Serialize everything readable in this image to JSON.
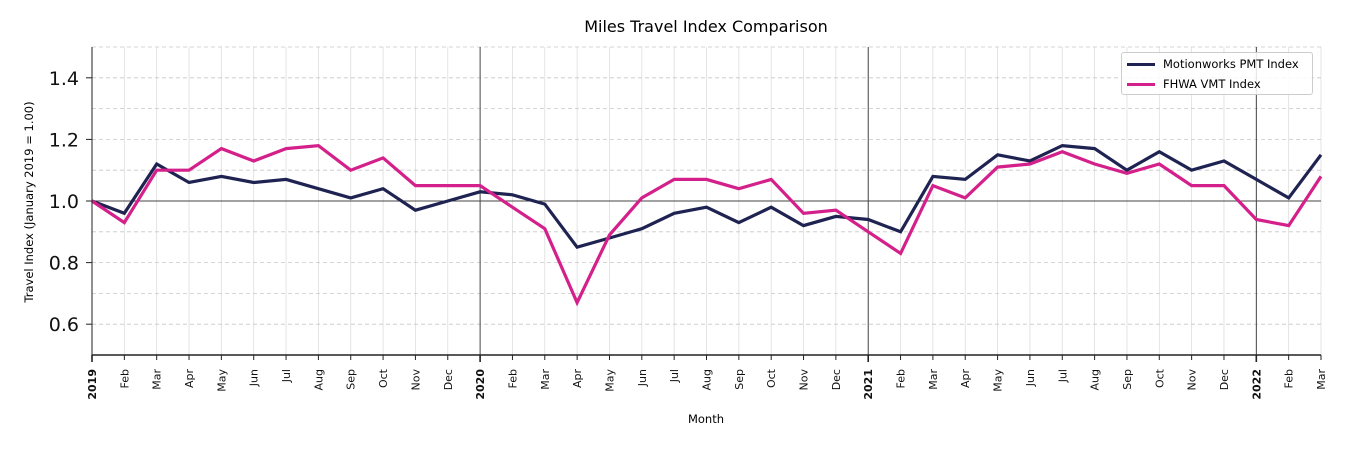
{
  "chart_data": {
    "type": "line",
    "title": "Miles Travel Index Comparison",
    "xlabel": "Month",
    "ylabel": "Travel Index (January 2019 = 1.00)",
    "ylim": [
      0.5,
      1.5
    ],
    "yticks": [
      "0.6",
      "0.8",
      "1.0",
      "1.2",
      "1.4"
    ],
    "grid": true,
    "legend_position": "upper right",
    "reference_line": 1.0,
    "year_markers": [
      "2019",
      "2020",
      "2021",
      "2022"
    ],
    "x": [
      "2019",
      "Feb",
      "Mar",
      "Apr",
      "May",
      "Jun",
      "Jul",
      "Aug",
      "Sep",
      "Oct",
      "Nov",
      "Dec",
      "2020",
      "Feb",
      "Mar",
      "Apr",
      "May",
      "Jun",
      "Jul",
      "Aug",
      "Sep",
      "Oct",
      "Nov",
      "Dec",
      "2021",
      "Feb",
      "Mar",
      "Apr",
      "May",
      "Jun",
      "Jul",
      "Aug",
      "Sep",
      "Oct",
      "Nov",
      "Dec",
      "2022",
      "Feb",
      "Mar"
    ],
    "series": [
      {
        "name": "Motionworks PMT Index",
        "color": "#1f2352",
        "values": [
          1.0,
          0.96,
          1.12,
          1.06,
          1.08,
          1.06,
          1.07,
          1.04,
          1.01,
          1.04,
          0.97,
          1.0,
          1.03,
          1.02,
          0.99,
          0.85,
          0.88,
          0.91,
          0.96,
          0.98,
          0.93,
          0.98,
          0.92,
          0.95,
          0.94,
          0.9,
          1.08,
          1.07,
          1.15,
          1.13,
          1.18,
          1.17,
          1.1,
          1.16,
          1.1,
          1.13,
          1.07,
          1.01,
          1.15
        ]
      },
      {
        "name": "FHWA VMT Index",
        "color": "#d4208a",
        "values": [
          1.0,
          0.93,
          1.1,
          1.1,
          1.17,
          1.13,
          1.17,
          1.18,
          1.1,
          1.14,
          1.05,
          1.05,
          1.05,
          0.98,
          0.91,
          0.67,
          0.89,
          1.01,
          1.07,
          1.07,
          1.04,
          1.07,
          0.96,
          0.97,
          0.9,
          0.83,
          1.05,
          1.01,
          1.11,
          1.12,
          1.16,
          1.12,
          1.09,
          1.12,
          1.05,
          1.05,
          0.94,
          0.92,
          1.08
        ]
      }
    ]
  }
}
